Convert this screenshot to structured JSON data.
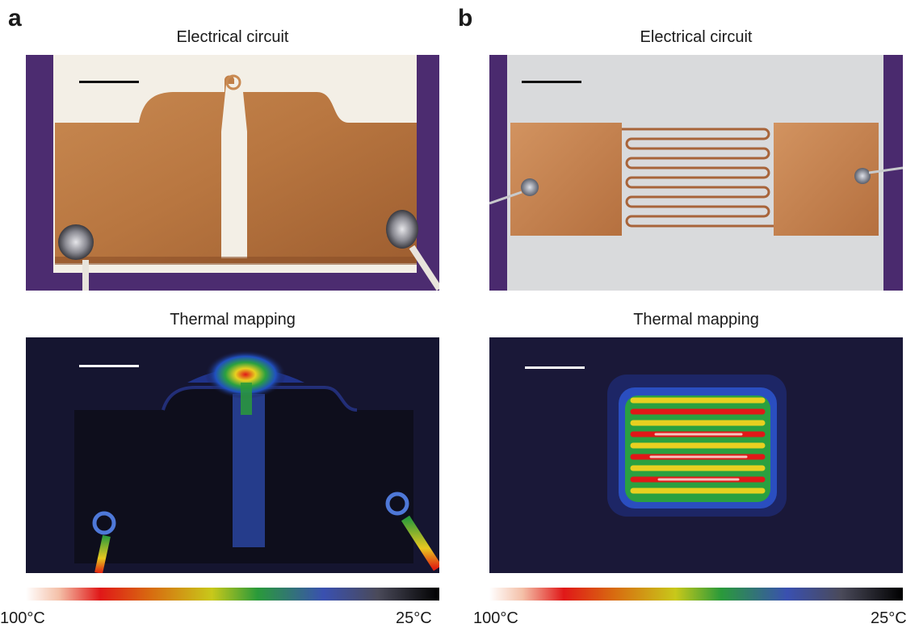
{
  "panels": [
    {
      "letter": "a",
      "top_title": "Electrical circuit",
      "bottom_title": "Thermal mapping",
      "colorbar": {
        "max_label": "100°C",
        "min_label": "25°C"
      }
    },
    {
      "letter": "b",
      "top_title": "Electrical circuit",
      "bottom_title": "Thermal mapping",
      "colorbar": {
        "max_label": "100°C",
        "min_label": "25°C"
      }
    }
  ],
  "colors": {
    "copper": "#c7814a",
    "purple_backing": "#4a2a6e",
    "thermal_background": "#1a1838",
    "colormap": [
      "#ffffff",
      "#f4c0a8",
      "#e01818",
      "#d86a10",
      "#c8c81a",
      "#2a9a3a",
      "#3a50b0",
      "#4a4a5a",
      "#000000"
    ]
  }
}
